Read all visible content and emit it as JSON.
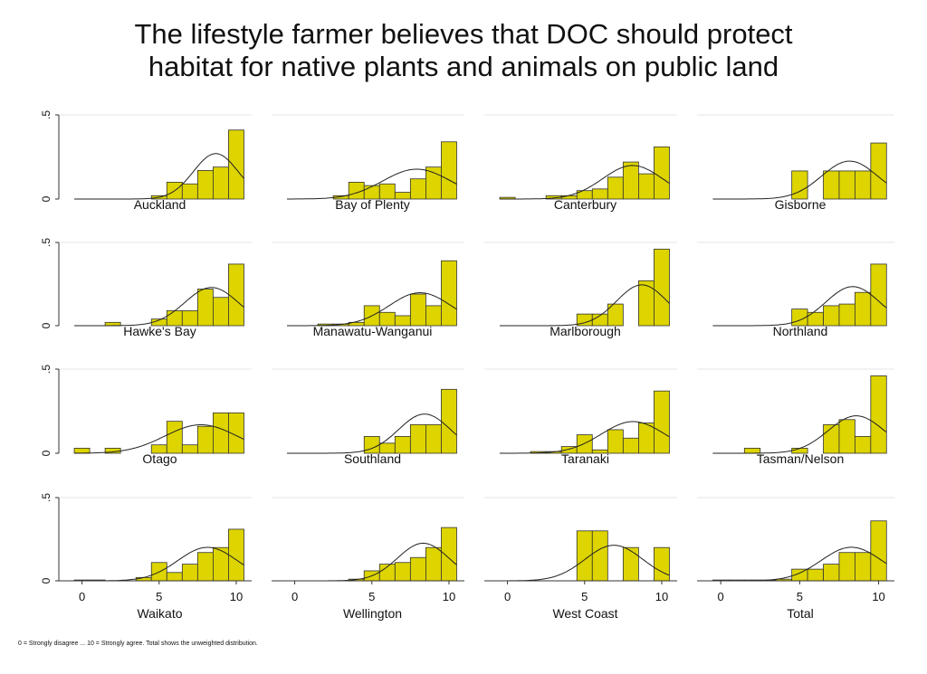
{
  "title": "The lifestyle farmer believes that DOC should protect habitat for native plants and animals on public land",
  "note": "0 = Strongly disagree ... 10 = Strongly agree. Total shows the unweighted distribution.",
  "chart_data": [
    {
      "type": "histogram",
      "title": "Auckland",
      "bins": [
        -0.5,
        0.5,
        1.5,
        2.5,
        3.5,
        4.5,
        5.5,
        6.5,
        7.5,
        8.5,
        9.5,
        10.5
      ],
      "values": [
        0,
        0,
        0,
        0,
        0,
        0.02,
        0.1,
        0.09,
        0.17,
        0.19,
        0.41
      ],
      "xlim": [
        -1.5,
        11
      ],
      "ylim": [
        0,
        0.5
      ],
      "yticks": [
        0,
        {
          "value": 0.5,
          "label": ".5"
        }
      ],
      "color": "#ddd400"
    },
    {
      "type": "histogram",
      "title": "Bay of Plenty",
      "bins": [
        -0.5,
        0.5,
        1.5,
        2.5,
        3.5,
        4.5,
        5.5,
        6.5,
        7.5,
        8.5,
        9.5,
        10.5
      ],
      "values": [
        0,
        0,
        0,
        0.02,
        0.1,
        0.08,
        0.09,
        0.04,
        0.12,
        0.19,
        0.34
      ],
      "xlim": [
        -1.5,
        11
      ],
      "ylim": [
        0,
        0.5
      ],
      "yticks": [
        0,
        {
          "value": 0.5,
          "label": ".5"
        }
      ],
      "color": "#ddd400"
    },
    {
      "type": "histogram",
      "title": "Canterbury",
      "bins": [
        -0.5,
        0.5,
        1.5,
        2.5,
        3.5,
        4.5,
        5.5,
        6.5,
        7.5,
        8.5,
        9.5,
        10.5
      ],
      "values": [
        0.01,
        0,
        0,
        0.02,
        0.02,
        0.05,
        0.06,
        0.13,
        0.22,
        0.15,
        0.31
      ],
      "xlim": [
        -1.5,
        11
      ],
      "ylim": [
        0,
        0.5
      ],
      "yticks": [
        0,
        {
          "value": 0.5,
          "label": ".5"
        }
      ],
      "color": "#ddd400"
    },
    {
      "type": "histogram",
      "title": "Gisborne",
      "bins": [
        -0.5,
        0.5,
        1.5,
        2.5,
        3.5,
        4.5,
        5.5,
        6.5,
        7.5,
        8.5,
        9.5,
        10.5
      ],
      "values": [
        0,
        0,
        0,
        0,
        0,
        0.167,
        0,
        0.167,
        0.167,
        0.167,
        0.333
      ],
      "xlim": [
        -1.5,
        11
      ],
      "ylim": [
        0,
        0.5
      ],
      "yticks": [
        0,
        {
          "value": 0.5,
          "label": ".5"
        }
      ],
      "color": "#ddd400"
    },
    {
      "type": "histogram",
      "title": "Hawke's Bay",
      "bins": [
        -0.5,
        0.5,
        1.5,
        2.5,
        3.5,
        4.5,
        5.5,
        6.5,
        7.5,
        8.5,
        9.5,
        10.5
      ],
      "values": [
        0,
        0,
        0.02,
        0,
        0,
        0.04,
        0.09,
        0.09,
        0.22,
        0.17,
        0.37
      ],
      "xlim": [
        -1.5,
        11
      ],
      "ylim": [
        0,
        0.5
      ],
      "yticks": [
        0,
        {
          "value": 0.5,
          "label": ".5"
        }
      ],
      "color": "#ddd400"
    },
    {
      "type": "histogram",
      "title": "Manawatu-Wanganui",
      "bins": [
        -0.5,
        0.5,
        1.5,
        2.5,
        3.5,
        4.5,
        5.5,
        6.5,
        7.5,
        8.5,
        9.5,
        10.5
      ],
      "values": [
        0,
        0,
        0.01,
        0.01,
        0.02,
        0.12,
        0.08,
        0.06,
        0.19,
        0.12,
        0.39
      ],
      "xlim": [
        -1.5,
        11
      ],
      "ylim": [
        0,
        0.5
      ],
      "yticks": [
        0,
        {
          "value": 0.5,
          "label": ".5"
        }
      ],
      "color": "#ddd400"
    },
    {
      "type": "histogram",
      "title": "Marlborough",
      "bins": [
        -0.5,
        0.5,
        1.5,
        2.5,
        3.5,
        4.5,
        5.5,
        6.5,
        7.5,
        8.5,
        9.5,
        10.5
      ],
      "values": [
        0,
        0,
        0,
        0,
        0,
        0.07,
        0.07,
        0.13,
        0,
        0.27,
        0.46
      ],
      "xlim": [
        -1.5,
        11
      ],
      "ylim": [
        0,
        0.5
      ],
      "yticks": [
        0,
        {
          "value": 0.5,
          "label": ".5"
        }
      ],
      "color": "#ddd400"
    },
    {
      "type": "histogram",
      "title": "Northland",
      "bins": [
        -0.5,
        0.5,
        1.5,
        2.5,
        3.5,
        4.5,
        5.5,
        6.5,
        7.5,
        8.5,
        9.5,
        10.5
      ],
      "values": [
        0,
        0,
        0,
        0,
        0,
        0.1,
        0.08,
        0.12,
        0.13,
        0.2,
        0.37
      ],
      "xlim": [
        -1.5,
        11
      ],
      "ylim": [
        0,
        0.5
      ],
      "yticks": [
        0,
        {
          "value": 0.5,
          "label": ".5"
        }
      ],
      "color": "#ddd400"
    },
    {
      "type": "histogram",
      "title": "Otago",
      "bins": [
        -0.5,
        0.5,
        1.5,
        2.5,
        3.5,
        4.5,
        5.5,
        6.5,
        7.5,
        8.5,
        9.5,
        10.5
      ],
      "values": [
        0.03,
        0,
        0.03,
        0,
        0,
        0.05,
        0.19,
        0.05,
        0.16,
        0.24,
        0.24
      ],
      "xlim": [
        -1.5,
        11
      ],
      "ylim": [
        0,
        0.5
      ],
      "yticks": [
        0,
        {
          "value": 0.5,
          "label": ".5"
        }
      ],
      "color": "#ddd400"
    },
    {
      "type": "histogram",
      "title": "Southland",
      "bins": [
        -0.5,
        0.5,
        1.5,
        2.5,
        3.5,
        4.5,
        5.5,
        6.5,
        7.5,
        8.5,
        9.5,
        10.5
      ],
      "values": [
        0,
        0,
        0,
        0,
        0,
        0.1,
        0.06,
        0.1,
        0.17,
        0.17,
        0.38
      ],
      "xlim": [
        -1.5,
        11
      ],
      "ylim": [
        0,
        0.5
      ],
      "yticks": [
        0,
        {
          "value": 0.5,
          "label": ".5"
        }
      ],
      "color": "#ddd400"
    },
    {
      "type": "histogram",
      "title": "Taranaki",
      "bins": [
        -0.5,
        0.5,
        1.5,
        2.5,
        3.5,
        4.5,
        5.5,
        6.5,
        7.5,
        8.5,
        9.5,
        10.5
      ],
      "values": [
        0,
        0,
        0.01,
        0.01,
        0.04,
        0.11,
        0.02,
        0.14,
        0.09,
        0.18,
        0.37
      ],
      "xlim": [
        -1.5,
        11
      ],
      "ylim": [
        0,
        0.5
      ],
      "yticks": [
        0,
        {
          "value": 0.5,
          "label": ".5"
        }
      ],
      "color": "#ddd400"
    },
    {
      "type": "histogram",
      "title": "Tasman/Nelson",
      "bins": [
        -0.5,
        0.5,
        1.5,
        2.5,
        3.5,
        4.5,
        5.5,
        6.5,
        7.5,
        8.5,
        9.5,
        10.5
      ],
      "values": [
        0,
        0,
        0.03,
        0,
        0,
        0.03,
        0,
        0.17,
        0.2,
        0.1,
        0.46
      ],
      "xlim": [
        -1.5,
        11
      ],
      "ylim": [
        0,
        0.5
      ],
      "yticks": [
        0,
        {
          "value": 0.5,
          "label": ".5"
        }
      ],
      "color": "#ddd400"
    },
    {
      "type": "histogram",
      "title": "Waikato",
      "bins": [
        -0.5,
        0.5,
        1.5,
        2.5,
        3.5,
        4.5,
        5.5,
        6.5,
        7.5,
        8.5,
        9.5,
        10.5
      ],
      "values": [
        0.005,
        0.005,
        0,
        0,
        0.02,
        0.11,
        0.05,
        0.1,
        0.17,
        0.2,
        0.31
      ],
      "xlim": [
        -1.5,
        11
      ],
      "ylim": [
        0,
        0.5
      ],
      "yticks": [
        0,
        {
          "value": 0.5,
          "label": ".5"
        }
      ],
      "xticks": [
        0,
        5,
        10
      ],
      "color": "#ddd400"
    },
    {
      "type": "histogram",
      "title": "Wellington",
      "bins": [
        -0.5,
        0.5,
        1.5,
        2.5,
        3.5,
        4.5,
        5.5,
        6.5,
        7.5,
        8.5,
        9.5,
        10.5
      ],
      "values": [
        0,
        0,
        0,
        0,
        0.01,
        0.06,
        0.1,
        0.11,
        0.14,
        0.2,
        0.32
      ],
      "xlim": [
        -1.5,
        11
      ],
      "ylim": [
        0,
        0.5
      ],
      "yticks": [
        0,
        {
          "value": 0.5,
          "label": ".5"
        }
      ],
      "xticks": [
        0,
        5,
        10
      ],
      "color": "#ddd400"
    },
    {
      "type": "histogram",
      "title": "West Coast",
      "bins": [
        -0.5,
        0.5,
        1.5,
        2.5,
        3.5,
        4.5,
        5.5,
        6.5,
        7.5,
        8.5,
        9.5,
        10.5
      ],
      "values": [
        0,
        0,
        0,
        0,
        0,
        0.3,
        0.3,
        0,
        0.2,
        0,
        0.2
      ],
      "xlim": [
        -1.5,
        11
      ],
      "ylim": [
        0,
        0.5
      ],
      "yticks": [
        0,
        {
          "value": 0.5,
          "label": ".5"
        }
      ],
      "xticks": [
        0,
        5,
        10
      ],
      "color": "#ddd400"
    },
    {
      "type": "histogram",
      "title": "Total",
      "bins": [
        -0.5,
        0.5,
        1.5,
        2.5,
        3.5,
        4.5,
        5.5,
        6.5,
        7.5,
        8.5,
        9.5,
        10.5
      ],
      "values": [
        0.005,
        0.005,
        0.005,
        0.005,
        0.01,
        0.07,
        0.07,
        0.1,
        0.17,
        0.17,
        0.36
      ],
      "xlim": [
        -1.5,
        11
      ],
      "ylim": [
        0,
        0.5
      ],
      "yticks": [
        0,
        {
          "value": 0.5,
          "label": ".5"
        }
      ],
      "xticks": [
        0,
        5,
        10
      ],
      "color": "#ddd400"
    }
  ]
}
